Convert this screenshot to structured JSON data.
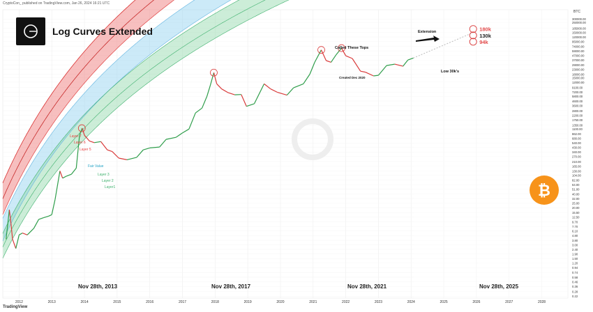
{
  "header": {
    "publisher": "CryptoCon_ published on TradingView.com, Jan 26, 2024 16:21 UTC",
    "currency": "BTC",
    "footer_logo": "TradingView"
  },
  "title": "Log Curves Extended",
  "chart_data": {
    "type": "line",
    "title": "Log Curves Extended",
    "yscale": "log",
    "ylim": [
      0.2,
      480000
    ],
    "xlim": [
      2011.5,
      2028.8
    ],
    "y_ticks": [
      "475000.00",
      "375000.00",
      "300000.00",
      "250000.00",
      "185000.00",
      "150000.00",
      "120000.00",
      "95000.00",
      "74000.00",
      "59000.00",
      "47000.00",
      "37000.00",
      "29000.00",
      "23000.00",
      "18000.00",
      "15000.00",
      "12000.00",
      "9100.00",
      "7200.00",
      "5800.00",
      "4600.00",
      "3600.00",
      "2800.00",
      "2200.00",
      "1750.00",
      "1350.00",
      "1100.00",
      "862.00",
      "680.00",
      "540.00",
      "430.00",
      "340.00",
      "270.00",
      "210.00",
      "165.00",
      "130.00",
      "104.00",
      "82.00",
      "64.00",
      "51.00",
      "40.00",
      "32.00",
      "25.00",
      "20.00",
      "15.50",
      "12.50",
      "9.70",
      "7.70",
      "6.10",
      "4.80",
      "3.80",
      "3.00",
      "2.40",
      "1.90",
      "1.50",
      "1.20",
      "0.94",
      "0.74",
      "0.58",
      "0.46",
      "0.36",
      "0.28",
      "0.22"
    ],
    "x_ticks": [
      "2012",
      "2013",
      "2014",
      "2015",
      "2016",
      "2017",
      "2018",
      "2019",
      "2020",
      "2021",
      "2022",
      "2023",
      "2024",
      "2025",
      "2026",
      "2027",
      "2028"
    ],
    "price_series": {
      "name": "BTC",
      "x": [
        2011.6,
        2011.7,
        2011.75,
        2011.8,
        2011.9,
        2012.0,
        2012.1,
        2012.25,
        2012.45,
        2012.6,
        2012.75,
        2012.9,
        2013.0,
        2013.1,
        2013.25,
        2013.33,
        2013.45,
        2013.6,
        2013.75,
        2013.85,
        2013.93,
        2014.0,
        2014.15,
        2014.3,
        2014.5,
        2014.7,
        2014.85,
        2015.05,
        2015.3,
        2015.6,
        2015.8,
        2016.0,
        2016.3,
        2016.5,
        2016.8,
        2017.0,
        2017.2,
        2017.4,
        2017.6,
        2017.75,
        2017.85,
        2017.96,
        2018.05,
        2018.2,
        2018.4,
        2018.6,
        2018.8,
        2018.96,
        2019.2,
        2019.5,
        2019.7,
        2019.9,
        2020.2,
        2020.4,
        2020.7,
        2020.9,
        2021.05,
        2021.25,
        2021.4,
        2021.55,
        2021.7,
        2021.87,
        2022.0,
        2022.2,
        2022.45,
        2022.6,
        2022.85,
        2023.0,
        2023.25,
        2023.5,
        2023.75,
        2023.9,
        2024.07
      ],
      "y": [
        4,
        18,
        9,
        4,
        2.5,
        5,
        5.5,
        5,
        7,
        11,
        12,
        13,
        14,
        30,
        130,
        90,
        100,
        110,
        150,
        800,
        1150,
        800,
        600,
        550,
        580,
        380,
        350,
        250,
        230,
        260,
        380,
        420,
        440,
        650,
        720,
        900,
        1100,
        2500,
        3200,
        5800,
        10000,
        19500,
        11000,
        8500,
        7000,
        6300,
        6400,
        3500,
        4000,
        11000,
        8500,
        7200,
        6200,
        9000,
        11000,
        18000,
        33000,
        62000,
        36000,
        33000,
        48000,
        68000,
        46000,
        40000,
        21000,
        20000,
        16500,
        17000,
        28000,
        30000,
        27000,
        37000,
        41000
      ]
    },
    "bands": [
      {
        "name": "Layer 7",
        "color": "#e83b3b"
      },
      {
        "name": "Layer 6",
        "color": "#e83b3b"
      },
      {
        "name": "Layer 5",
        "color": "#e83b3b"
      },
      {
        "name": "Fair Value",
        "color": "#2aa8c9"
      },
      {
        "name": "Layer 3",
        "color": "#3aaf6a"
      },
      {
        "name": "Layer 2",
        "color": "#3aaf6a"
      },
      {
        "name": "Layer1",
        "color": "#3aaf6a"
      }
    ],
    "annotations": {
      "called_tops": "Called These Tops",
      "created": "Created Dec 2020",
      "extension": "Extension",
      "low": "Low 30k's",
      "targets": [
        "180k",
        "130k",
        "94k"
      ],
      "dates": [
        "Nov 28th, 2013",
        "Nov 28th, 2017",
        "Nov 28th, 2021",
        "Nov 28th, 2025"
      ]
    },
    "colors": {
      "top_band": "#f08a8a",
      "mid_band": "#8fd1f0",
      "low_band": "#8fd6a8",
      "price": "#2e9d4a",
      "price_down": "#d93a3a",
      "bitcoin_orange": "#f7931a"
    }
  }
}
